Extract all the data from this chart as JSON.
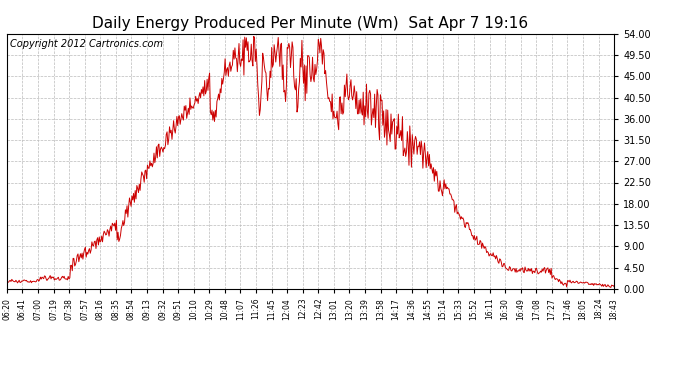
{
  "title": "Daily Energy Produced Per Minute (Wm)  Sat Apr 7 19:16",
  "copyright": "Copyright 2012 Cartronics.com",
  "line_color": "#cc0000",
  "bg_color": "#ffffff",
  "plot_bg_color": "#ffffff",
  "grid_color": "#bbbbbb",
  "ylim": [
    0,
    54.0
  ],
  "yticks": [
    0.0,
    4.5,
    9.0,
    13.5,
    18.0,
    22.5,
    27.0,
    31.5,
    36.0,
    40.5,
    45.0,
    49.5,
    54.0
  ],
  "xtick_labels": [
    "06:20",
    "06:41",
    "07:00",
    "07:19",
    "07:38",
    "07:57",
    "08:16",
    "08:35",
    "08:54",
    "09:13",
    "09:32",
    "09:51",
    "10:10",
    "10:29",
    "10:48",
    "11:07",
    "11:26",
    "11:45",
    "12:04",
    "12:23",
    "12:42",
    "13:01",
    "13:20",
    "13:39",
    "13:58",
    "14:17",
    "14:36",
    "14:55",
    "15:14",
    "15:33",
    "15:52",
    "16:11",
    "16:30",
    "16:49",
    "17:08",
    "17:27",
    "17:46",
    "18:05",
    "18:24",
    "18:43"
  ],
  "title_fontsize": 11,
  "copyright_fontsize": 7
}
